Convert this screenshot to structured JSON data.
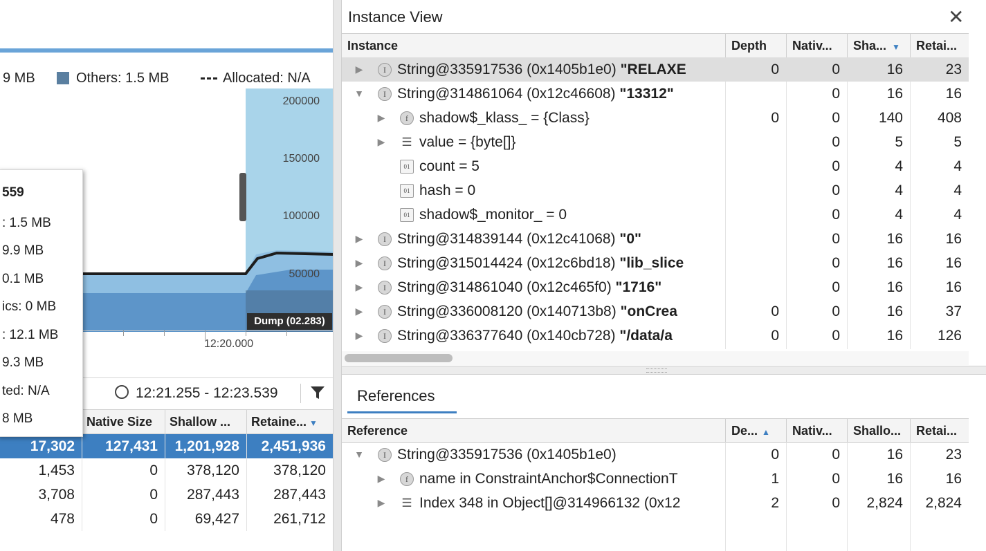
{
  "colors": {
    "accent": "#3d7fc1",
    "chart_light": "#a9d4ea",
    "chart_mid": "#6fa6d6",
    "chart_dark": "#3a78b8",
    "others": "#5a7fa0"
  },
  "left": {
    "legend": {
      "partial_left": "9 MB",
      "others": "Others: 1.5 MB",
      "allocated": "Allocated: N/A"
    },
    "y_ticks": [
      "200000",
      "150000",
      "100000",
      "50000"
    ],
    "dump_label": "Dump (02.283)",
    "x_tick": "12:20.000",
    "tooltip": {
      "lines": [
        "559",
        ": 1.5 MB",
        "9.9 MB",
        "0.1 MB",
        "ics: 0 MB",
        ": 12.1 MB",
        "9.3 MB",
        "ted: N/A",
        "8 MB"
      ]
    },
    "time_range": "12:21.255 - 12:23.539",
    "columns": [
      "Native Size",
      "Shallow ...",
      "Retaine..."
    ],
    "rows": [
      {
        "count": "17,302",
        "native": "127,431",
        "shallow": "1,201,928",
        "retained": "2,451,936"
      },
      {
        "count": "1,453",
        "native": "0",
        "shallow": "378,120",
        "retained": "378,120"
      },
      {
        "count": "3,708",
        "native": "0",
        "shallow": "287,443",
        "retained": "287,443"
      },
      {
        "count": "478",
        "native": "0",
        "shallow": "69,427",
        "retained": "261,712"
      }
    ]
  },
  "instance_view": {
    "title": "Instance View",
    "columns": {
      "instance": "Instance",
      "depth": "Depth",
      "native": "Nativ...",
      "shallow": "Sha...",
      "retained": "Retai..."
    },
    "rows": [
      {
        "arrow": "▶",
        "icon": "I",
        "name": "String@335917536 (0x1405b1e0) ",
        "str": "\"RELAXE",
        "depth": "0",
        "native": "0",
        "shallow": "16",
        "retained": "23"
      },
      {
        "arrow": "▼",
        "icon": "I",
        "name": "String@314861064 (0x12c46608) ",
        "str": "\"13312\"",
        "depth": "",
        "native": "0",
        "shallow": "16",
        "retained": "16"
      },
      {
        "arrow": "▶",
        "icon": "f",
        "name": "shadow$_klass_ = {Class}",
        "str": "",
        "depth": "0",
        "native": "0",
        "shallow": "140",
        "retained": "408"
      },
      {
        "arrow": "▶",
        "icon": "list",
        "name": "value = {byte[]}",
        "str": "",
        "depth": "",
        "native": "0",
        "shallow": "5",
        "retained": "5"
      },
      {
        "arrow": "",
        "icon": "field",
        "name": "count = 5",
        "str": "",
        "depth": "",
        "native": "0",
        "shallow": "4",
        "retained": "4"
      },
      {
        "arrow": "",
        "icon": "field",
        "name": "hash = 0",
        "str": "",
        "depth": "",
        "native": "0",
        "shallow": "4",
        "retained": "4"
      },
      {
        "arrow": "",
        "icon": "field",
        "name": "shadow$_monitor_ = 0",
        "str": "",
        "depth": "",
        "native": "0",
        "shallow": "4",
        "retained": "4"
      },
      {
        "arrow": "▶",
        "icon": "I",
        "name": "String@314839144 (0x12c41068) ",
        "str": "\"0\"",
        "depth": "",
        "native": "0",
        "shallow": "16",
        "retained": "16"
      },
      {
        "arrow": "▶",
        "icon": "I",
        "name": "String@315014424 (0x12c6bd18) ",
        "str": "\"lib_slice",
        "depth": "",
        "native": "0",
        "shallow": "16",
        "retained": "16"
      },
      {
        "arrow": "▶",
        "icon": "I",
        "name": "String@314861040 (0x12c465f0) ",
        "str": "\"1716\"",
        "depth": "",
        "native": "0",
        "shallow": "16",
        "retained": "16"
      },
      {
        "arrow": "▶",
        "icon": "I",
        "name": "String@336008120 (0x140713b8) ",
        "str": "\"onCrea",
        "depth": "0",
        "native": "0",
        "shallow": "16",
        "retained": "37"
      },
      {
        "arrow": "▶",
        "icon": "I",
        "name": "String@336377640 (0x140cb728) ",
        "str": "\"/data/a",
        "depth": "0",
        "native": "0",
        "shallow": "16",
        "retained": "126"
      }
    ]
  },
  "references": {
    "title": "References",
    "columns": {
      "reference": "Reference",
      "depth": "De...",
      "native": "Nativ...",
      "shallow": "Shallo...",
      "retained": "Retai..."
    },
    "rows": [
      {
        "arrow": "▼",
        "icon": "I",
        "name": "String@335917536 (0x1405b1e0)",
        "depth": "0",
        "native": "0",
        "shallow": "16",
        "retained": "23"
      },
      {
        "arrow": "▶",
        "icon": "f",
        "name": "name in ConstraintAnchor$ConnectionT",
        "depth": "1",
        "native": "0",
        "shallow": "16",
        "retained": "16"
      },
      {
        "arrow": "▶",
        "icon": "list",
        "name": "Index 348 in Object[]@314966132 (0x12",
        "depth": "2",
        "native": "0",
        "shallow": "2,824",
        "retained": "2,824"
      }
    ]
  }
}
